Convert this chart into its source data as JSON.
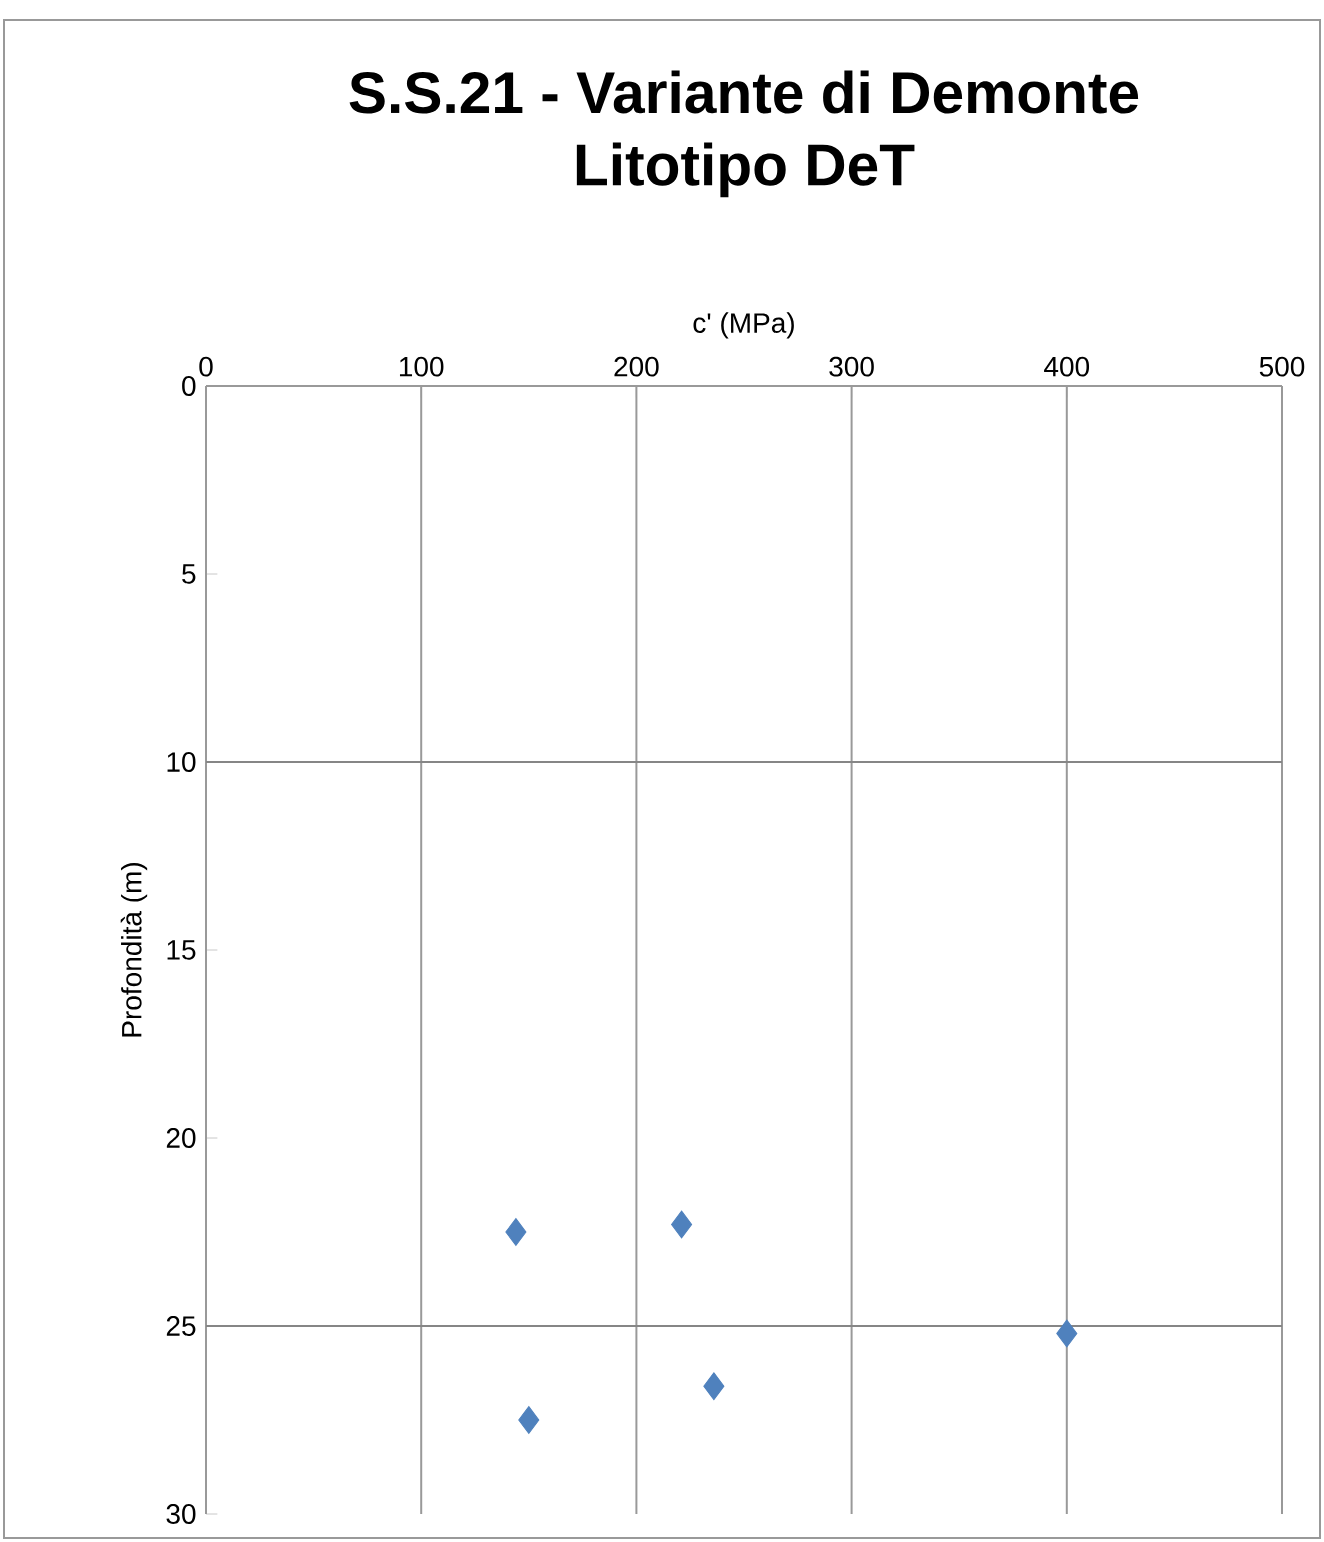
{
  "chart_data": {
    "type": "scatter",
    "title": "S.S.21 - Variante di Demonte",
    "subtitle": "Litotipo DeT",
    "xlabel": "c' (MPa)",
    "ylabel": "Profondità (m)",
    "x": [
      144,
      221,
      400,
      236,
      150
    ],
    "series": [
      {
        "color": "#4f81bd",
        "values": [
          22.5,
          22.3,
          25.2,
          26.6,
          27.5
        ]
      }
    ],
    "marker": "diamond",
    "xlim": [
      0,
      500
    ],
    "xticks": [
      0,
      100,
      200,
      300,
      400,
      500
    ],
    "ylim": [
      30,
      0
    ],
    "yticks": [
      0,
      5,
      10,
      15,
      20,
      25,
      30
    ],
    "grid": "x",
    "ref_lines": [
      {
        "axis": "y",
        "value": 10,
        "color": "#868686"
      },
      {
        "axis": "y",
        "value": 25,
        "color": "#868686"
      }
    ]
  }
}
